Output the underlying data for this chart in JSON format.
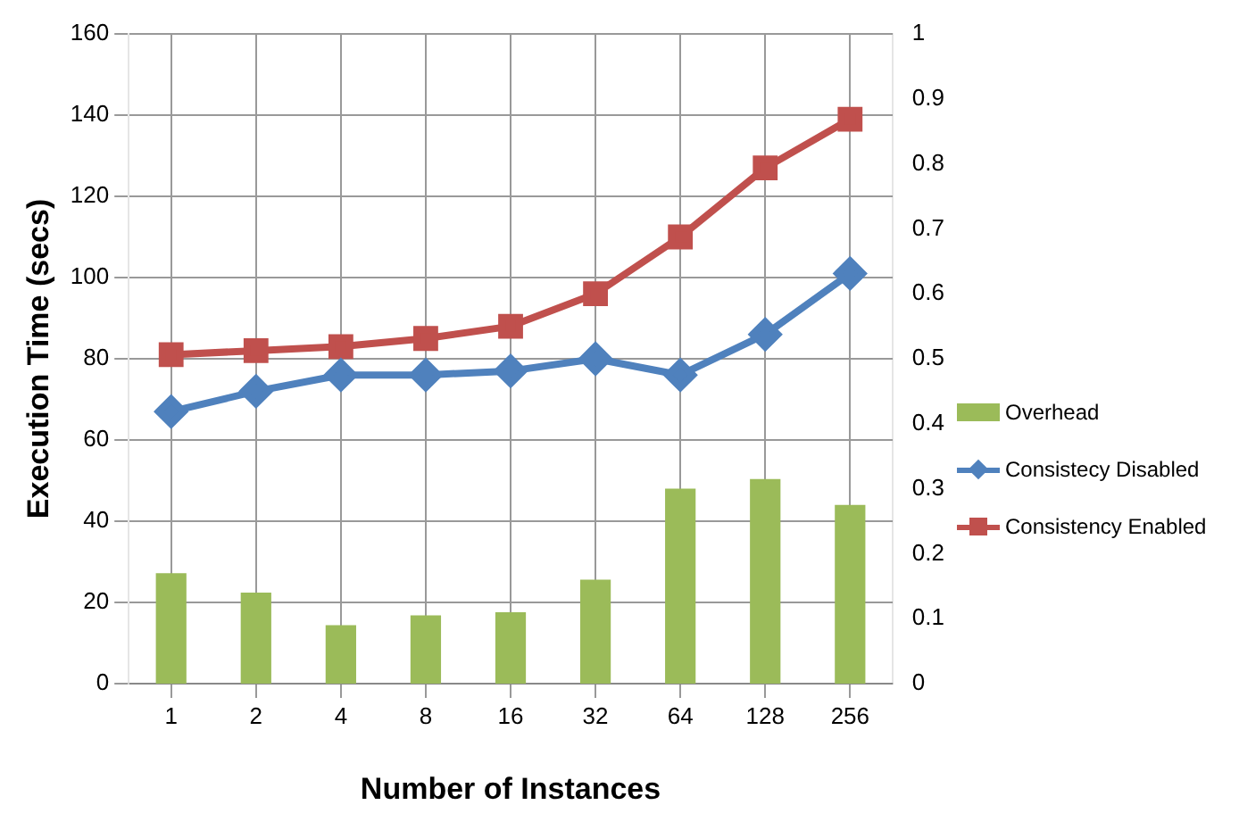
{
  "chart_data": {
    "type": "line",
    "xlabel": "Number of Instances",
    "ylabel": "Execution Time (secs)",
    "categories": [
      "1",
      "2",
      "4",
      "8",
      "16",
      "32",
      "64",
      "128",
      "256"
    ],
    "series": [
      {
        "name": "Overhead",
        "type": "bar",
        "axis": "y2",
        "color": "#9bbb59",
        "values": [
          0.17,
          0.14,
          0.09,
          0.105,
          0.11,
          0.16,
          0.3,
          0.315,
          0.275
        ]
      },
      {
        "name": "Consistecy Disabled",
        "type": "line",
        "marker": "diamond",
        "color": "#4f81bd",
        "values": [
          67,
          72,
          76,
          76,
          77,
          80,
          76,
          86,
          101
        ]
      },
      {
        "name": "Consistency Enabled",
        "type": "line",
        "marker": "square",
        "color": "#c0504d",
        "values": [
          81,
          82,
          83,
          85,
          88,
          96,
          110,
          127,
          139
        ]
      }
    ],
    "ylim": [
      0,
      160
    ],
    "yticks": [
      0,
      20,
      40,
      60,
      80,
      100,
      120,
      140,
      160
    ],
    "y2lim": [
      0,
      1
    ],
    "y2ticks": [
      0,
      0.1,
      0.2,
      0.3,
      0.4,
      0.5,
      0.6,
      0.7,
      0.8,
      0.9,
      1
    ],
    "grid": true,
    "legend": "right"
  }
}
